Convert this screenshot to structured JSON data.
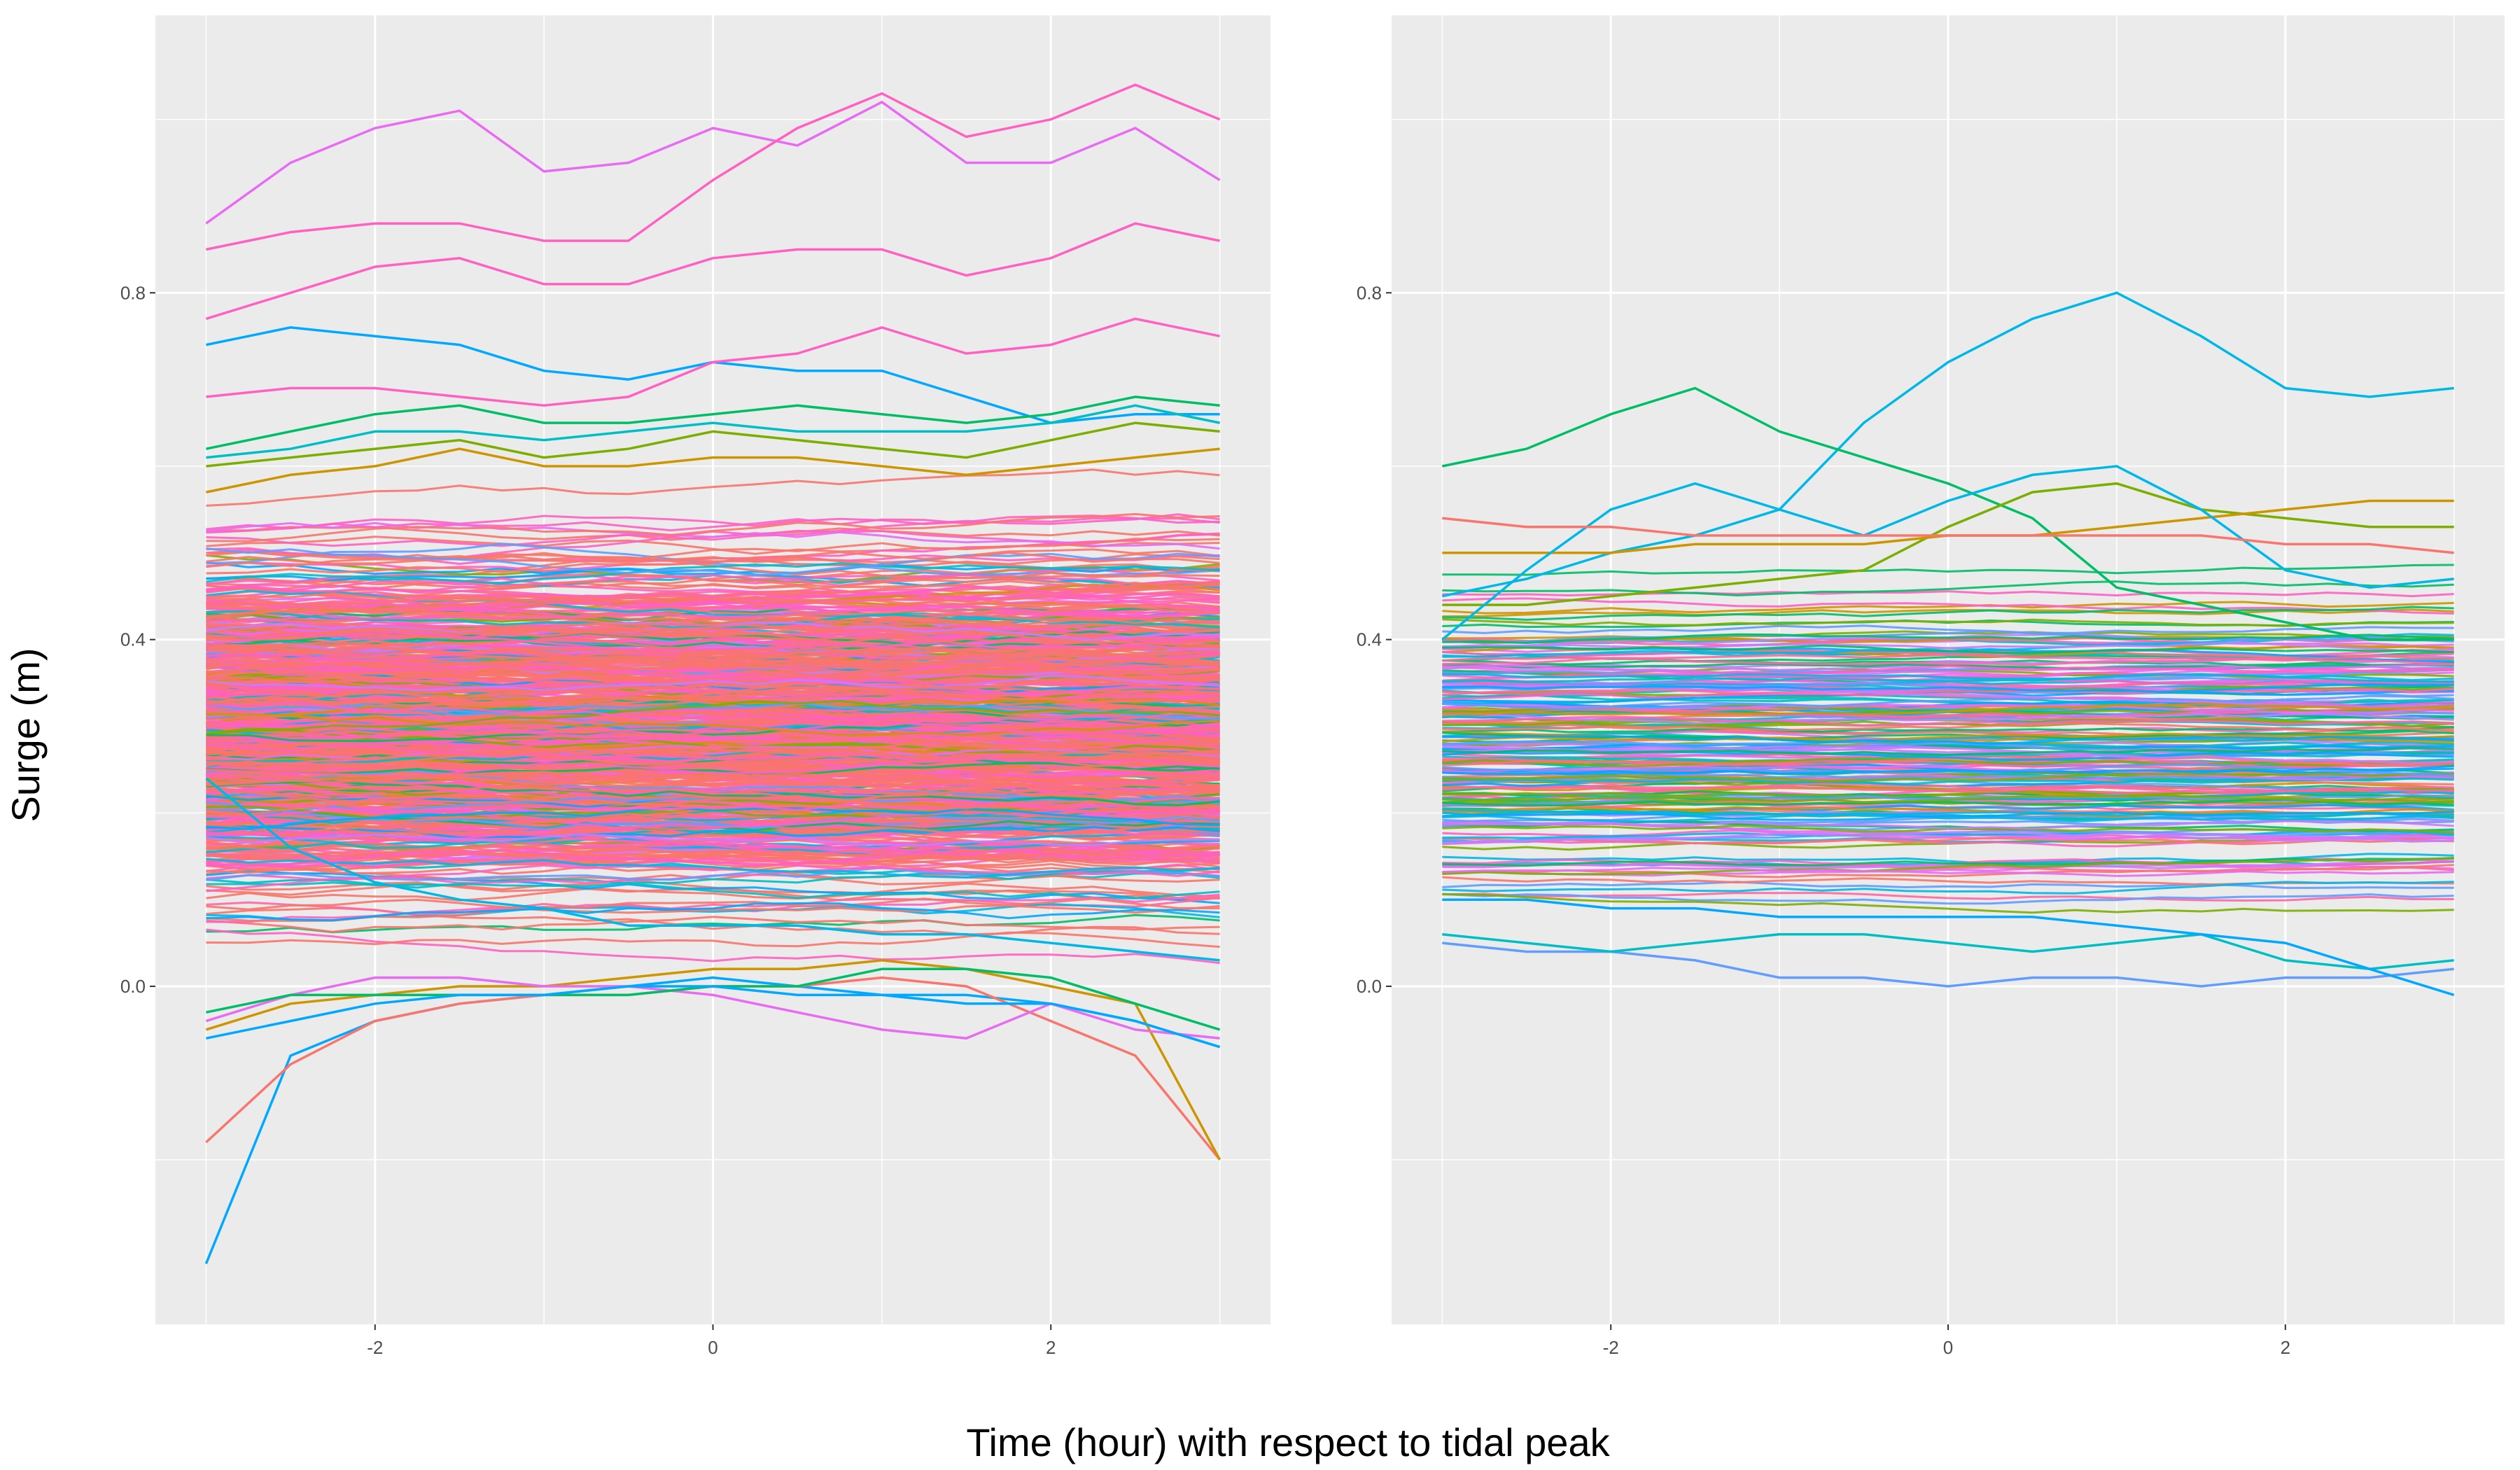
{
  "figure": {
    "ylabel": "Surge (m)",
    "xlabel": "Time (hour) with respect to tidal peak"
  },
  "chart_data": [
    {
      "type": "line",
      "panel": "left",
      "xlim": [
        -3.3,
        3.3
      ],
      "ylim": [
        -0.39,
        1.12
      ],
      "xticks": [
        -2,
        0,
        2
      ],
      "xtick_labels": [
        "-2",
        "0",
        "2"
      ],
      "yticks": [
        0.0,
        0.4,
        0.8
      ],
      "ytick_labels": [
        "0.0",
        "0.4",
        "0.8"
      ],
      "grid": true,
      "legend": "none",
      "background": "#ebebeb",
      "x": [
        -3,
        -2.5,
        -2,
        -1.5,
        -1,
        -0.5,
        0,
        0.5,
        1,
        1.5,
        2,
        2.5,
        3
      ],
      "series": [
        {
          "color": "#e76bf3",
          "values": [
            0.88,
            0.95,
            0.99,
            1.01,
            0.94,
            0.95,
            0.99,
            0.97,
            1.02,
            0.95,
            0.95,
            0.99,
            0.93
          ]
        },
        {
          "color": "#ff61c3",
          "values": [
            0.85,
            0.87,
            0.88,
            0.88,
            0.86,
            0.86,
            0.93,
            0.99,
            1.03,
            0.98,
            1.0,
            1.04,
            1.0
          ]
        },
        {
          "color": "#ff61c3",
          "values": [
            0.77,
            0.8,
            0.83,
            0.84,
            0.81,
            0.81,
            0.84,
            0.85,
            0.85,
            0.82,
            0.84,
            0.88,
            0.86
          ]
        },
        {
          "color": "#00a9ff",
          "values": [
            0.74,
            0.76,
            0.75,
            0.74,
            0.71,
            0.7,
            0.72,
            0.71,
            0.71,
            0.68,
            0.65,
            0.66,
            0.66
          ]
        },
        {
          "color": "#ff61c3",
          "values": [
            0.68,
            0.69,
            0.69,
            0.68,
            0.67,
            0.68,
            0.72,
            0.73,
            0.76,
            0.73,
            0.74,
            0.77,
            0.75
          ]
        },
        {
          "color": "#00be67",
          "values": [
            0.62,
            0.64,
            0.66,
            0.67,
            0.65,
            0.65,
            0.66,
            0.67,
            0.66,
            0.65,
            0.66,
            0.68,
            0.67
          ]
        },
        {
          "color": "#7cae00",
          "values": [
            0.6,
            0.61,
            0.62,
            0.63,
            0.61,
            0.62,
            0.64,
            0.63,
            0.62,
            0.61,
            0.63,
            0.65,
            0.64
          ]
        },
        {
          "color": "#00bfc4",
          "values": [
            0.61,
            0.62,
            0.64,
            0.64,
            0.63,
            0.64,
            0.65,
            0.64,
            0.64,
            0.64,
            0.65,
            0.67,
            0.65
          ]
        },
        {
          "color": "#cd9600",
          "values": [
            0.57,
            0.59,
            0.6,
            0.62,
            0.6,
            0.6,
            0.61,
            0.61,
            0.6,
            0.59,
            0.6,
            0.61,
            0.62
          ]
        },
        {
          "color": "#00b8e7",
          "values": [
            0.24,
            0.16,
            0.12,
            0.1,
            0.09,
            0.07,
            0.07,
            0.07,
            0.06,
            0.06,
            0.05,
            0.04,
            0.03
          ]
        },
        {
          "color": "#00a9ff",
          "values": [
            -0.32,
            -0.08,
            -0.04,
            -0.02,
            -0.01,
            0.0,
            0.01,
            0.0,
            -0.01,
            -0.01,
            -0.02,
            -0.04,
            -0.07
          ]
        },
        {
          "color": "#f8766d",
          "values": [
            -0.18,
            -0.09,
            -0.04,
            -0.02,
            -0.01,
            -0.01,
            0.0,
            0.0,
            0.01,
            0.0,
            -0.04,
            -0.08,
            -0.2
          ]
        },
        {
          "color": "#cd9600",
          "values": [
            -0.05,
            -0.02,
            -0.01,
            0.0,
            0.0,
            0.01,
            0.02,
            0.02,
            0.03,
            0.02,
            0.0,
            -0.02,
            -0.2
          ]
        },
        {
          "color": "#e76bf3",
          "values": [
            -0.04,
            -0.01,
            0.01,
            0.01,
            0.0,
            0.0,
            -0.01,
            -0.03,
            -0.05,
            -0.06,
            -0.02,
            -0.05,
            -0.06
          ]
        },
        {
          "color": "#00be67",
          "values": [
            -0.03,
            -0.01,
            -0.01,
            -0.01,
            -0.01,
            -0.01,
            0.0,
            0.0,
            0.02,
            0.02,
            0.01,
            -0.02,
            -0.05
          ]
        },
        {
          "color": "#00a9ff",
          "values": [
            -0.06,
            -0.04,
            -0.02,
            -0.01,
            -0.01,
            0.0,
            0.0,
            -0.01,
            -0.01,
            -0.02,
            -0.02,
            -0.04,
            -0.07
          ]
        }
      ]
    },
    {
      "type": "line",
      "panel": "right",
      "xlim": [
        -3.3,
        3.3
      ],
      "ylim": [
        -0.39,
        1.12
      ],
      "xticks": [
        -2,
        0,
        2
      ],
      "xtick_labels": [
        "-2",
        "0",
        "2"
      ],
      "yticks": [
        0.0,
        0.4,
        0.8
      ],
      "ytick_labels": [
        "0.0",
        "0.4",
        "0.8"
      ],
      "grid": true,
      "legend": "none",
      "background": "#ebebeb",
      "x": [
        -3,
        -2.5,
        -2,
        -1.5,
        -1,
        -0.5,
        0,
        0.5,
        1,
        1.5,
        2,
        2.5,
        3
      ],
      "series": [
        {
          "color": "#00b8e7",
          "values": [
            0.45,
            0.47,
            0.5,
            0.52,
            0.55,
            0.65,
            0.72,
            0.77,
            0.8,
            0.75,
            0.69,
            0.68,
            0.69
          ]
        },
        {
          "color": "#00be67",
          "values": [
            0.6,
            0.62,
            0.66,
            0.69,
            0.64,
            0.61,
            0.58,
            0.54,
            0.46,
            0.44,
            0.42,
            0.4,
            0.4
          ]
        },
        {
          "color": "#7cae00",
          "values": [
            0.44,
            0.44,
            0.45,
            0.46,
            0.47,
            0.48,
            0.53,
            0.57,
            0.58,
            0.55,
            0.54,
            0.53,
            0.53
          ]
        },
        {
          "color": "#cd9600",
          "values": [
            0.5,
            0.5,
            0.5,
            0.51,
            0.51,
            0.51,
            0.52,
            0.52,
            0.53,
            0.54,
            0.55,
            0.56,
            0.56
          ]
        },
        {
          "color": "#00b8e7",
          "values": [
            0.4,
            0.48,
            0.55,
            0.58,
            0.55,
            0.52,
            0.56,
            0.59,
            0.6,
            0.55,
            0.48,
            0.46,
            0.47
          ]
        },
        {
          "color": "#619cff",
          "values": [
            0.05,
            0.04,
            0.04,
            0.03,
            0.01,
            0.01,
            0.0,
            0.01,
            0.01,
            0.0,
            0.01,
            0.01,
            0.02
          ]
        },
        {
          "color": "#00bfc4",
          "values": [
            0.06,
            0.05,
            0.04,
            0.05,
            0.06,
            0.06,
            0.05,
            0.04,
            0.05,
            0.06,
            0.03,
            0.02,
            0.03
          ]
        },
        {
          "color": "#00a9ff",
          "values": [
            0.1,
            0.1,
            0.09,
            0.09,
            0.08,
            0.08,
            0.08,
            0.08,
            0.07,
            0.06,
            0.05,
            0.02,
            -0.01
          ]
        },
        {
          "color": "#f8766d",
          "values": [
            0.54,
            0.53,
            0.53,
            0.52,
            0.52,
            0.52,
            0.52,
            0.52,
            0.52,
            0.52,
            0.51,
            0.51,
            0.5
          ]
        }
      ]
    }
  ]
}
